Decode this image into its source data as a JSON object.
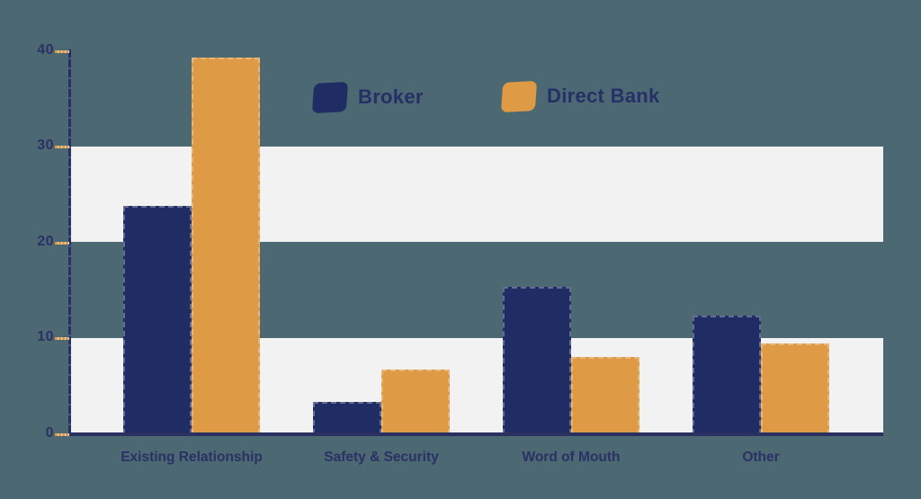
{
  "chart_data": {
    "type": "bar",
    "title": "",
    "xlabel": "",
    "ylabel": "",
    "categories": [
      "Existing Relationship",
      "Safety & Security",
      "Word of Mouth",
      "Other"
    ],
    "series": [
      {
        "name": "Broker",
        "color": "#1f2d64",
        "values": [
          23.8,
          3.4,
          15.4,
          12.4
        ]
      },
      {
        "name": "Direct Bank",
        "color": "#de9a44",
        "values": [
          39.3,
          6.8,
          8.1,
          9.5
        ]
      }
    ],
    "ylim": [
      0,
      40
    ],
    "yticks": [
      0,
      10,
      20,
      30,
      40
    ],
    "grid": "off",
    "stripe_bands": [
      [
        0,
        10
      ],
      [
        20,
        30
      ]
    ],
    "legend_position": "top-center"
  },
  "legend": {
    "items": [
      {
        "label": "Broker",
        "color": "#1f2d64"
      },
      {
        "label": "Direct Bank",
        "color": "#de9a44"
      }
    ]
  },
  "colors": {
    "background": "#4c6872",
    "stripe": "#f3f2f3",
    "axis": "#2a3160",
    "tick_dash": "#de9a44",
    "label_text": "#2a3164"
  }
}
